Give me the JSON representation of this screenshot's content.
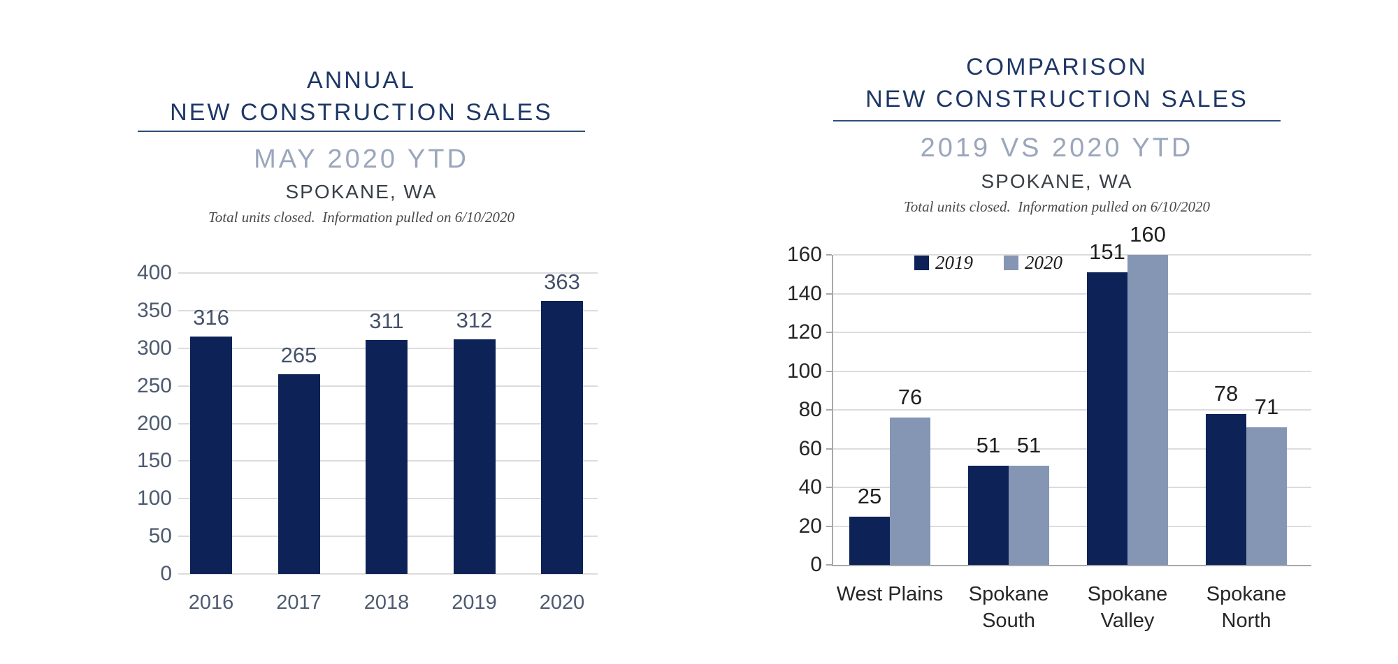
{
  "colors": {
    "title_navy": "#1e3766",
    "divider_navy": "#2e4d7b",
    "subtitle_gray_blue": "#9aa6bb",
    "location_text": "#3a3f47",
    "footnote_text": "#4a4a4a",
    "navy_bar": "#0d2257",
    "light_blue_bar": "#8496b3",
    "gridline": "#dcdcdc",
    "axis_line": "#a8a8a8",
    "left_axis_text": "#4d5a70",
    "left_value_text": "#45516b",
    "right_axis_text": "#262626",
    "right_value_text": "#1f1f1f"
  },
  "chart_data": [
    {
      "type": "bar",
      "title_line1": "ANNUAL",
      "title_line2": "NEW CONSTRUCTION SALES",
      "subtitle": "MAY 2020 YTD",
      "location": "SPOKANE, WA",
      "footnote": "Total units closed.  Information pulled on 6/10/2020",
      "categories": [
        "2016",
        "2017",
        "2018",
        "2019",
        "2020"
      ],
      "values": [
        316,
        265,
        311,
        312,
        363
      ],
      "data_labels": true,
      "ylabel": "",
      "xlabel": "",
      "ylim": [
        0,
        400
      ],
      "ytick_step": 50,
      "grid": true,
      "legend": false,
      "bar_color": "#0d2257"
    },
    {
      "type": "grouped_bar",
      "title_line1": "COMPARISON",
      "title_line2": "NEW CONSTRUCTION SALES",
      "subtitle": "2019 VS 2020 YTD",
      "location": "SPOKANE, WA",
      "footnote": "Total units closed.  Information pulled on 6/10/2020",
      "categories": [
        "West Plains",
        "Spokane\nSouth",
        "Spokane\nValley",
        "Spokane\nNorth"
      ],
      "series": [
        {
          "name": "2019",
          "color": "#0d2257",
          "values": [
            25,
            51,
            151,
            78
          ]
        },
        {
          "name": "2020",
          "color": "#8496b3",
          "values": [
            76,
            51,
            160,
            71
          ]
        }
      ],
      "data_labels": true,
      "ylabel": "",
      "xlabel": "",
      "ylim": [
        0,
        160
      ],
      "ytick_step": 20,
      "grid": true,
      "legend": true,
      "legend_position": "top-center"
    }
  ]
}
